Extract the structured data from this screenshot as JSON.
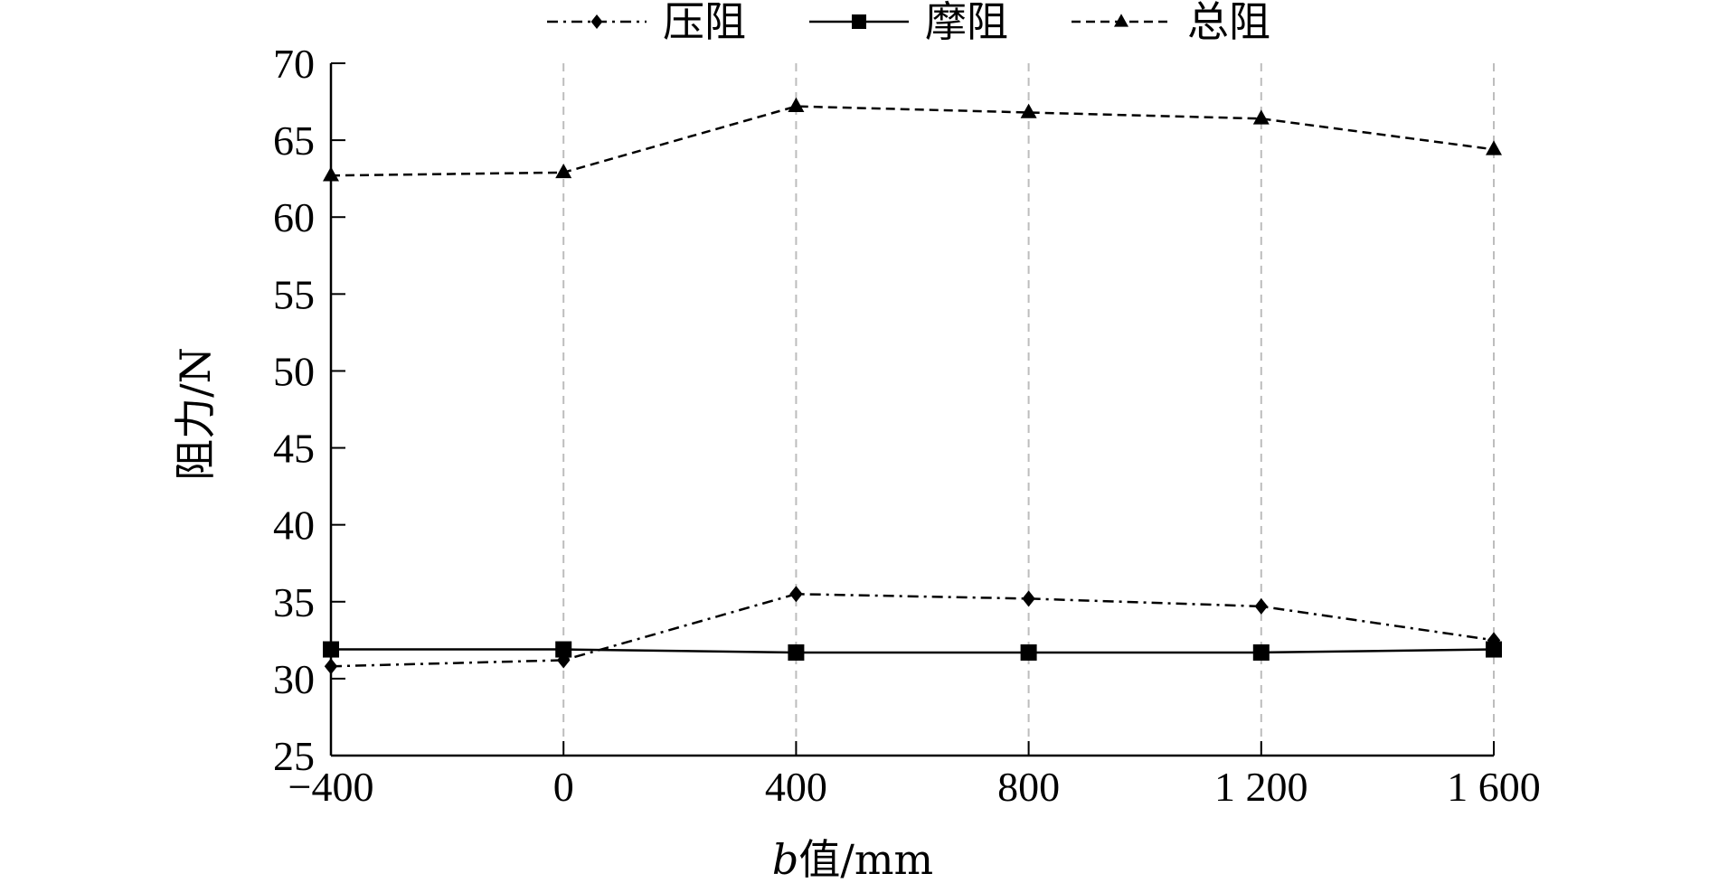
{
  "chart_data": {
    "type": "line",
    "title": "",
    "xlabel_italic": "b",
    "xlabel_rest": "值/mm",
    "ylabel": "阻力/N",
    "x": [
      -400,
      0,
      400,
      800,
      1200,
      1600
    ],
    "x_tick_labels": [
      "−400",
      "0",
      "400",
      "800",
      "1 200",
      "1 600"
    ],
    "ylim": [
      25,
      70
    ],
    "y_ticks": [
      25,
      30,
      35,
      40,
      45,
      50,
      55,
      60,
      65,
      70
    ],
    "grid": "vertical dashed",
    "legend_position": "top",
    "series": [
      {
        "name": "压阻",
        "marker": "diamond",
        "line": "dash-dot",
        "color": "#000000",
        "values": [
          30.8,
          31.2,
          35.5,
          35.2,
          34.7,
          32.5
        ]
      },
      {
        "name": "摩阻",
        "marker": "square",
        "line": "solid",
        "color": "#000000",
        "values": [
          31.9,
          31.9,
          31.7,
          31.7,
          31.7,
          31.9
        ]
      },
      {
        "name": "总阻",
        "marker": "triangle",
        "line": "dashed",
        "color": "#000000",
        "values": [
          62.7,
          62.9,
          67.2,
          66.8,
          66.4,
          64.4
        ]
      }
    ]
  }
}
